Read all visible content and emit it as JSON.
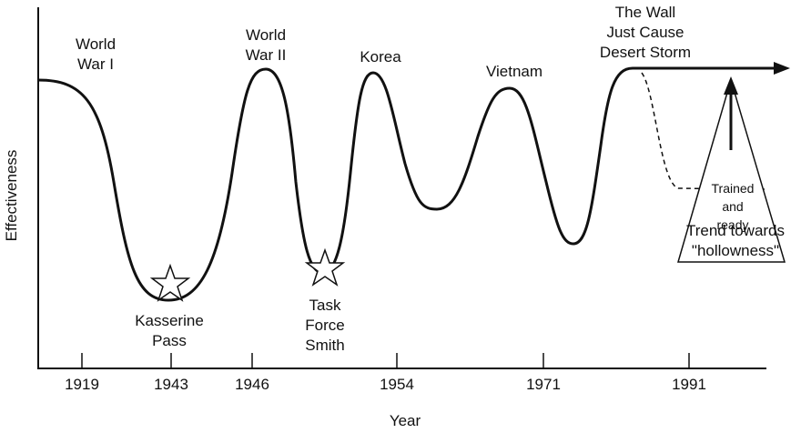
{
  "y_axis": {
    "label": "Effectiveness"
  },
  "x_axis": {
    "label": "Year",
    "ticks": [
      1919,
      1943,
      1946,
      1954,
      1971,
      1991
    ]
  },
  "peaks": [
    {
      "lines": [
        "World",
        "War I"
      ]
    },
    {
      "lines": [
        "World",
        "War II"
      ]
    },
    {
      "lines": [
        "Korea"
      ]
    },
    {
      "lines": [
        "Vietnam"
      ]
    },
    {
      "lines": [
        "The Wall",
        "Just Cause",
        "Desert Storm"
      ]
    }
  ],
  "lows": [
    {
      "lines": [
        "Kasserine",
        "Pass"
      ]
    },
    {
      "lines": [
        "Task",
        "Force",
        "Smith"
      ]
    }
  ],
  "triangle": {
    "lines": [
      "Trained",
      "and",
      "ready"
    ]
  },
  "trend": {
    "lines": [
      "Trend towards",
      "\"hollowness\""
    ]
  }
}
